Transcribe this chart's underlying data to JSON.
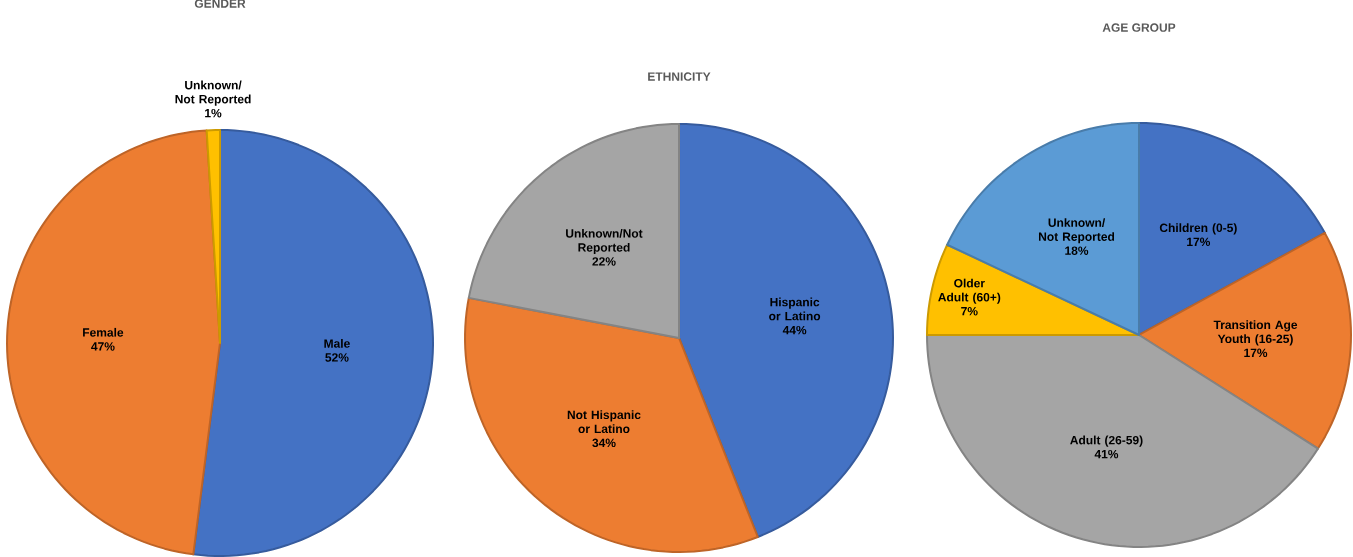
{
  "chart_data": [
    {
      "type": "pie",
      "title": "GENDER",
      "categories": [
        "Male",
        "Female",
        "Unknown/ Not Reported"
      ],
      "values": [
        52,
        47,
        1
      ],
      "colors": [
        "#4472c4",
        "#ed7d31",
        "#ffc000"
      ],
      "value_labels": [
        "52%",
        "47%",
        "1%"
      ]
    },
    {
      "type": "pie",
      "title": "ETHNICITY",
      "categories": [
        "Hispanic or Latino",
        "Not Hispanic or Latino",
        "Unknown/Not Reported"
      ],
      "values": [
        44,
        34,
        22
      ],
      "colors": [
        "#4472c4",
        "#ed7d31",
        "#a5a5a5"
      ],
      "value_labels": [
        "44%",
        "34%",
        "22%"
      ]
    },
    {
      "type": "pie",
      "title": "AGE GROUP",
      "categories": [
        "Children (0-5)",
        "Transition Age Youth (16-25)",
        "Adult (26-59)",
        "Older Adult (60+)",
        "Unknown/ Not Reported"
      ],
      "values": [
        17,
        17,
        41,
        7,
        18
      ],
      "colors": [
        "#4472c4",
        "#ed7d31",
        "#a5a5a5",
        "#ffc000",
        "#5b9bd5"
      ],
      "value_labels": [
        "17%",
        "17%",
        "41%",
        "7%",
        "18%"
      ]
    }
  ]
}
